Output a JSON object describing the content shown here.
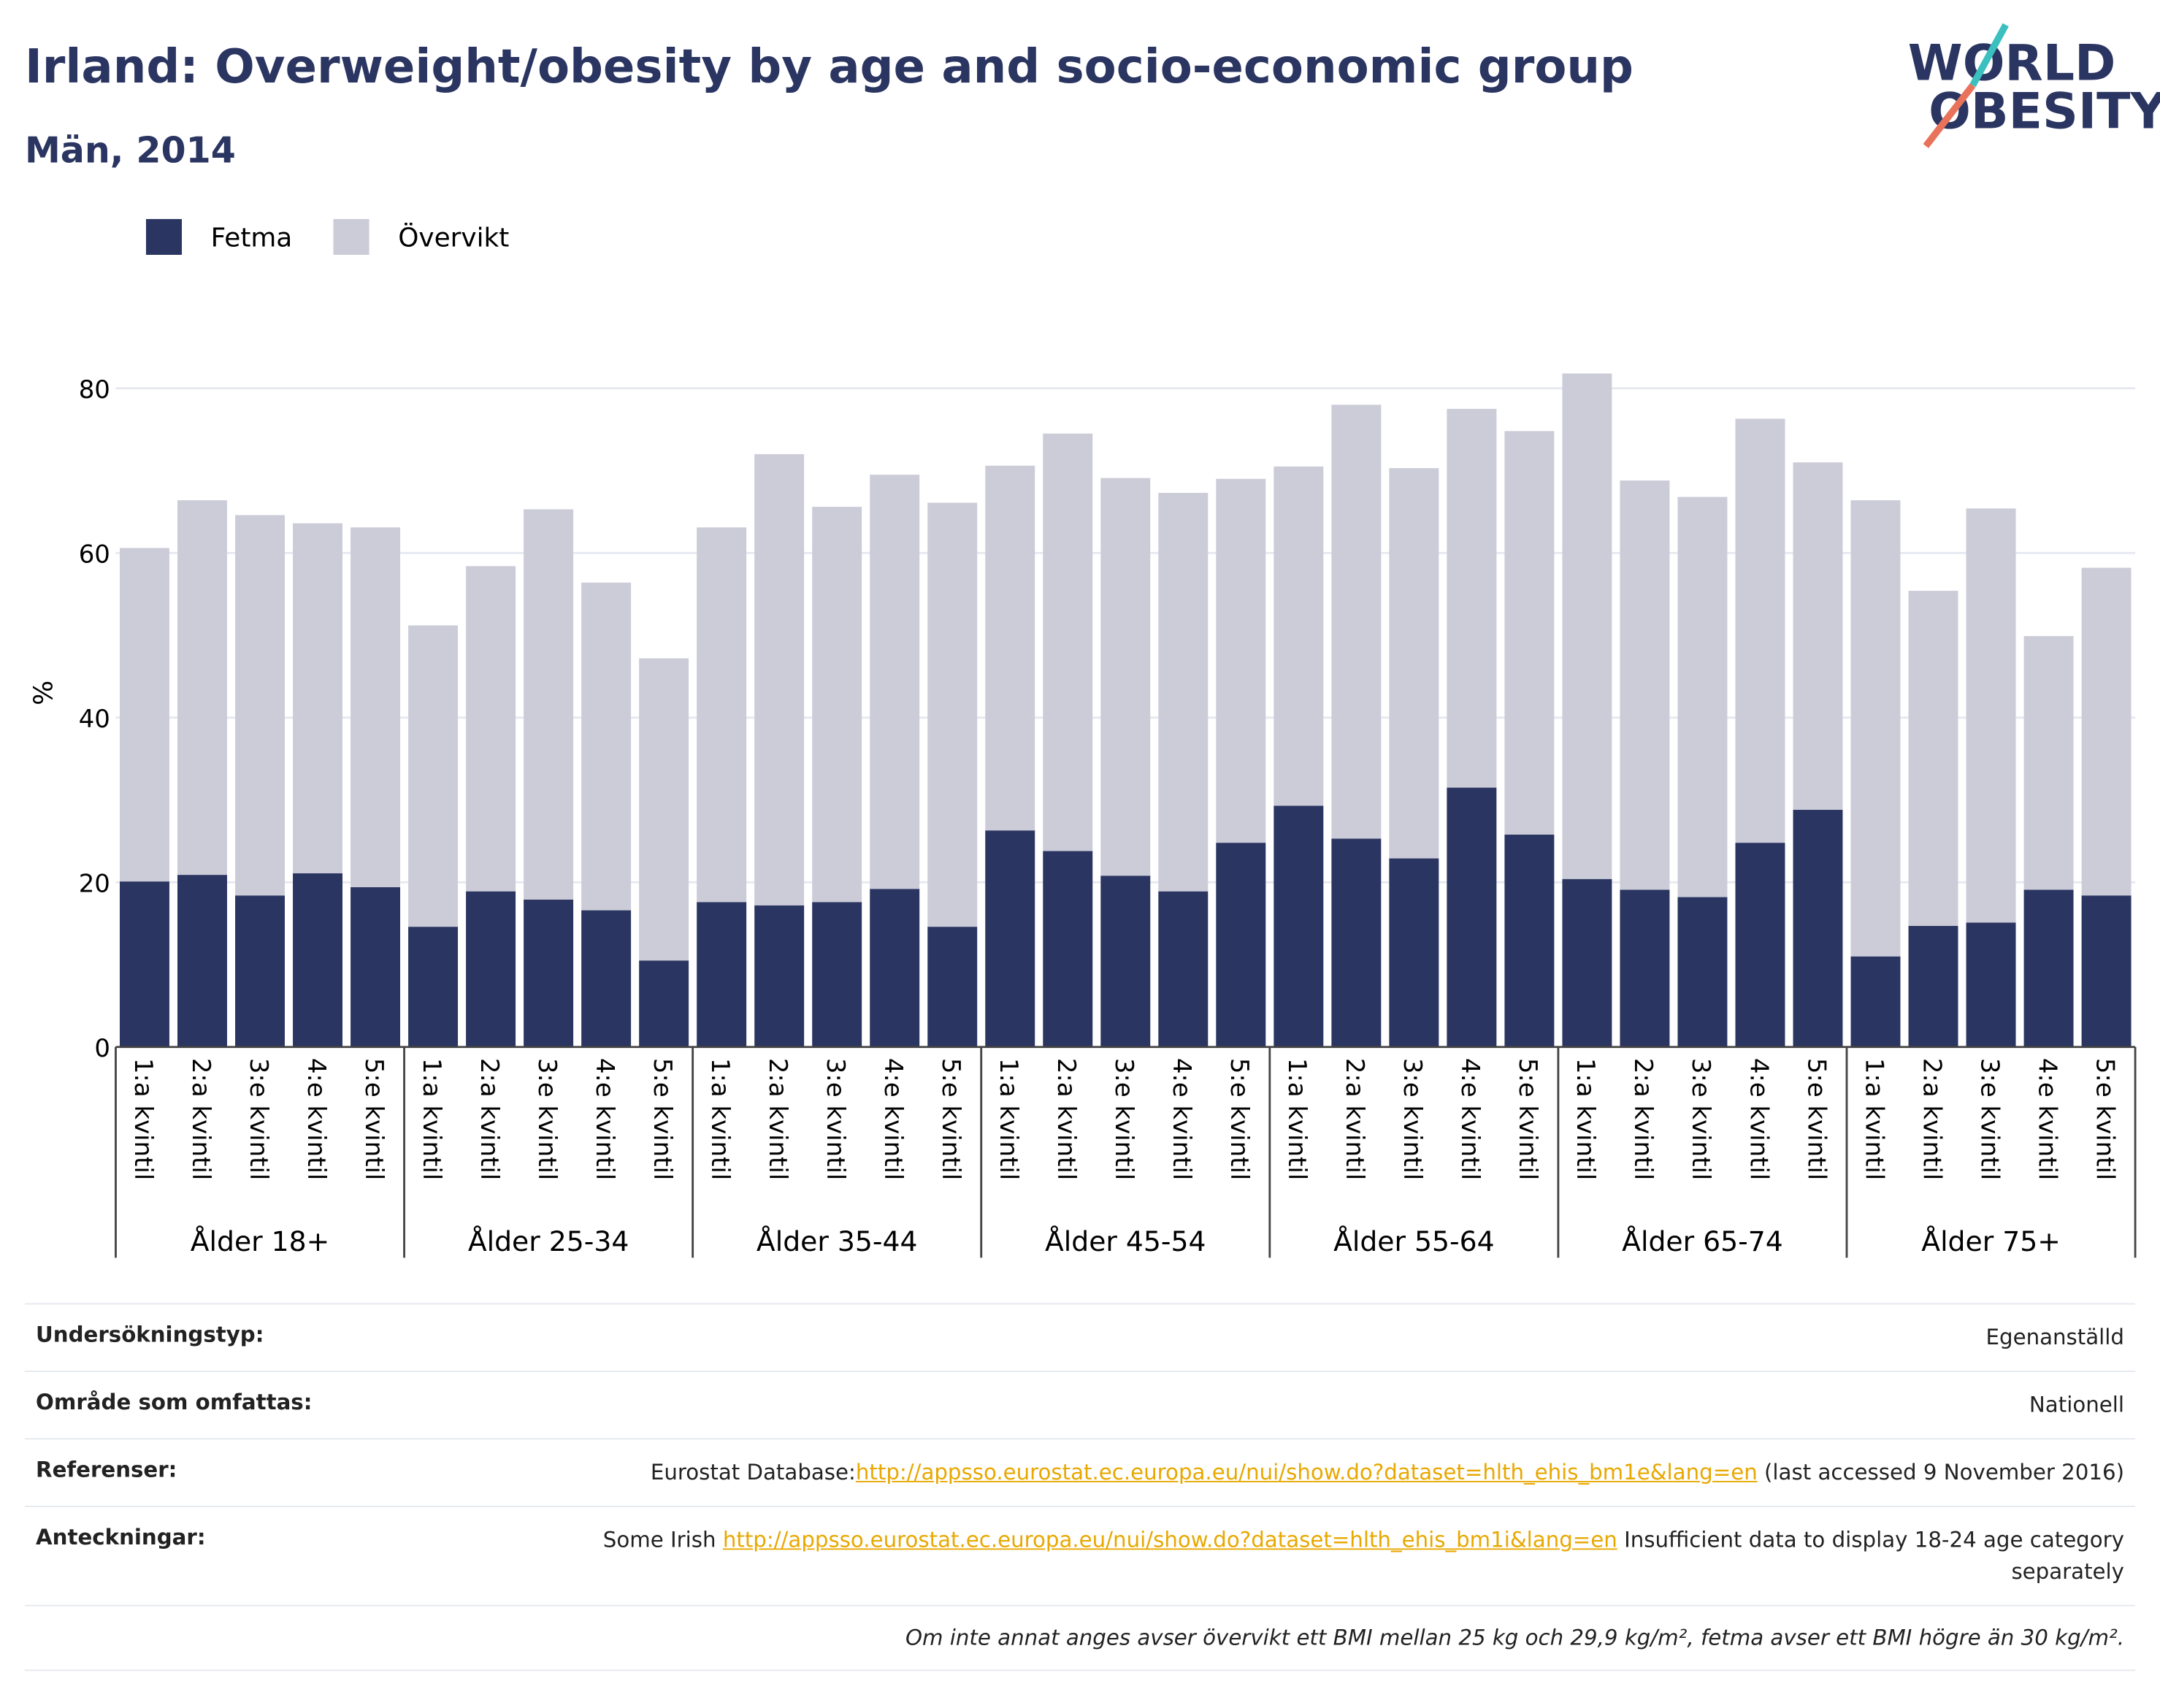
{
  "chart_data": {
    "type": "stacked_bar",
    "title": "Irland: Overweight/obesity by age and socio-economic group",
    "subtitle": "Män, 2014",
    "y_label": "%",
    "categories": [
      "1:a kvintil",
      "2:a kvintil",
      "3:e kvintil",
      "4:e kvintil",
      "5:e kvintil",
      "1:a kvintil",
      "2:a kvintil",
      "3:e kvintil",
      "4:e kvintil",
      "5:e kvintil",
      "1:a kvintil",
      "2:a kvintil",
      "3:e kvintil",
      "4:e kvintil",
      "5:e kvintil",
      "1:a kvintil",
      "2:a kvintil",
      "3:e kvintil",
      "4:e kvintil",
      "5:e kvintil",
      "1:a kvintil",
      "2:a kvintil",
      "3:e kvintil",
      "4:e kvintil",
      "5:e kvintil",
      "1:a kvintil",
      "2:a kvintil",
      "3:e kvintil",
      "4:e kvintil",
      "5:e kvintil",
      "1:a kvintil",
      "2:a kvintil",
      "3:e kvintil",
      "4:e kvintil",
      "5:e kvintil"
    ],
    "groups": [
      "Ålder 18+",
      "Ålder 25-34",
      "Ålder 35-44",
      "Ålder 45-54",
      "Ålder 55-64",
      "Ålder 65-74",
      "Ålder 75+"
    ],
    "series": [
      {
        "name": "Fetma",
        "color": "#2b3561",
        "values": [
          20.1,
          20.9,
          18.4,
          21.1,
          19.4,
          14.6,
          18.9,
          17.9,
          16.6,
          10.5,
          17.6,
          17.2,
          17.6,
          19.2,
          14.6,
          26.3,
          23.8,
          20.8,
          18.9,
          24.8,
          29.3,
          25.3,
          22.9,
          31.5,
          25.8,
          20.4,
          19.1,
          18.2,
          24.8,
          28.8,
          11.0,
          14.7,
          15.1,
          19.1,
          18.4
        ]
      },
      {
        "name": "Övervikt",
        "color": "#cbccd8",
        "values": [
          40.5,
          45.5,
          46.2,
          42.5,
          43.7,
          36.6,
          39.5,
          47.4,
          39.8,
          36.7,
          45.5,
          54.8,
          48.0,
          50.3,
          51.5,
          44.3,
          50.7,
          48.3,
          48.4,
          44.2,
          41.2,
          52.7,
          47.4,
          46.0,
          49.0,
          61.4,
          49.7,
          48.6,
          51.5,
          42.2,
          55.4,
          40.7,
          50.3,
          30.8,
          39.8
        ]
      }
    ],
    "ylim": [
      0,
      86
    ],
    "yticks": [
      0,
      20,
      40,
      60,
      80
    ],
    "grid": true,
    "legend": "top-left"
  },
  "logo": {
    "line1": "WORLD",
    "line2": "OBESITY"
  },
  "table": {
    "rows": [
      {
        "label": "Undersökningstyp:",
        "value": "Egenanställd"
      },
      {
        "label": "Område som omfattas:",
        "value": "Nationell"
      },
      {
        "label": "Referenser:",
        "prefix": "Eurostat Database:",
        "link": "http://appsso.eurostat.ec.europa.eu/nui/show.do?dataset=hlth_ehis_bm1e&lang=en",
        "suffix": " (last accessed 9 November 2016)"
      },
      {
        "label": "Anteckningar:",
        "prefix": "Some Irish ",
        "link": "http://appsso.eurostat.ec.europa.eu/nui/show.do?dataset=hlth_ehis_bm1i&lang=en",
        "suffix": " Insufficient data to display 18-24 age category separately"
      }
    ],
    "footnote": "Om inte annat anges avser övervikt ett BMI mellan 25 kg och 29,9 kg/m², fetma avser ett BMI högre än 30 kg/m²."
  }
}
